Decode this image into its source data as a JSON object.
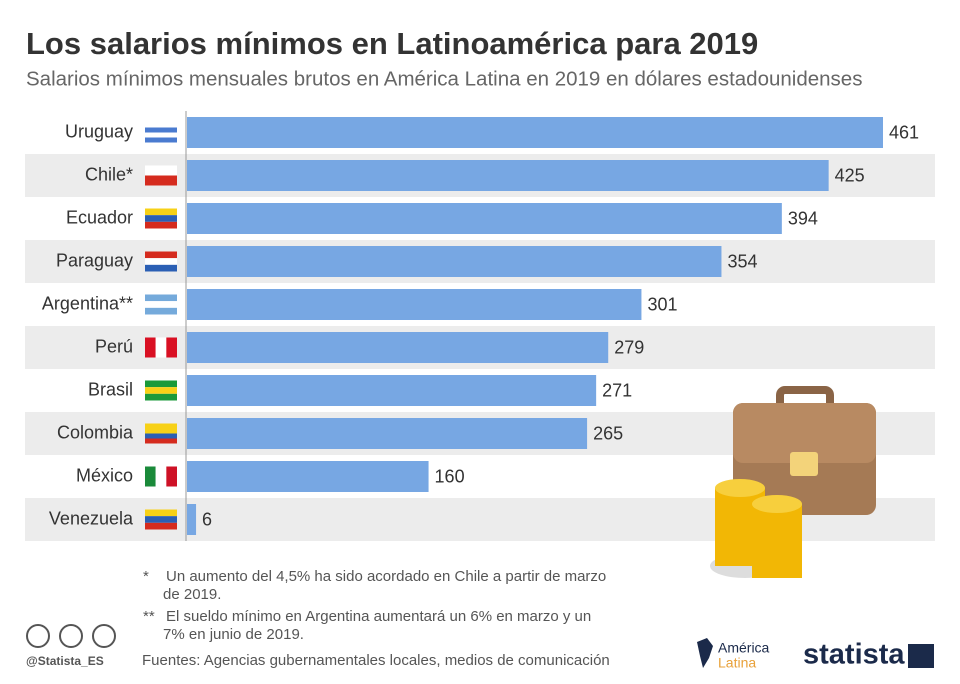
{
  "chart_data": {
    "type": "bar",
    "orientation": "horizontal",
    "title": "Los salarios mínimos en Latinoamérica para 2019",
    "subtitle": "Salarios mínimos mensuales brutos en América Latina en 2019 en dólares estadounidenses",
    "categories": [
      "Uruguay",
      "Chile*",
      "Ecuador",
      "Paraguay",
      "Argentina**",
      "Perú",
      "Brasil",
      "Colombia",
      "México",
      "Venezuela"
    ],
    "values": [
      461,
      425,
      394,
      354,
      301,
      279,
      271,
      265,
      160,
      6
    ],
    "color": "#77a7e3",
    "footnotes": [
      {
        "marker": "*",
        "lines": [
          "Un aumento del 4,5% ha sido acordado en Chile a partir de marzo",
          "de 2019."
        ]
      },
      {
        "marker": "**",
        "lines": [
          "El sueldo mínimo en Argentina aumentará un 6% en marzo y un",
          "7% en junio de 2019."
        ]
      }
    ],
    "source": "Fuentes: Agencias gubernamentales locales, medios de comunicación",
    "handle": "@Statista_ES",
    "partner_logo": [
      "América",
      "Latina"
    ],
    "brand": "statista"
  }
}
